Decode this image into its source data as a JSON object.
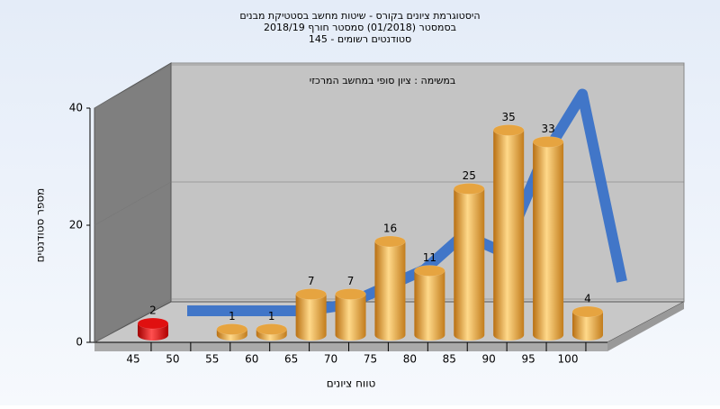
{
  "chart_data": {
    "type": "bar",
    "title": [
      "היסטוגרמת ציונים בקורס - שיטות מחשב בסטטיקת מבנים",
      "בסמסטר  (01/2018)  סמסטר חורף 2018/19",
      "145 - סטודנטים רשומים"
    ],
    "subtitle": "במשימה : ציון סופי במחשב המרכזי",
    "x_label": "טווח ציונים",
    "y_label": "מספר סטודנטים",
    "categories": [
      45,
      50,
      55,
      60,
      65,
      70,
      75,
      80,
      85,
      90,
      95,
      100
    ],
    "series": [
      {
        "type": "bar",
        "color": "#e6a440",
        "colors": [
          "#e01010",
          null,
          "#e6a440",
          "#e6a440",
          "#e6a440",
          "#e6a440",
          "#e6a440",
          "#e6a440",
          "#e6a440",
          "#e6a440",
          "#e6a440",
          "#e6a440"
        ],
        "values": [
          2,
          null,
          1,
          1,
          7,
          7,
          16,
          11,
          25,
          35,
          33,
          4
        ]
      },
      {
        "type": "line",
        "color": "#3a72c8",
        "values": [
          0,
          0,
          0,
          0,
          1,
          4,
          7,
          13,
          10,
          26,
          37,
          5
        ]
      }
    ],
    "ylim": [
      0,
      40
    ],
    "yticks": [
      0,
      20,
      40
    ],
    "grid": true
  }
}
